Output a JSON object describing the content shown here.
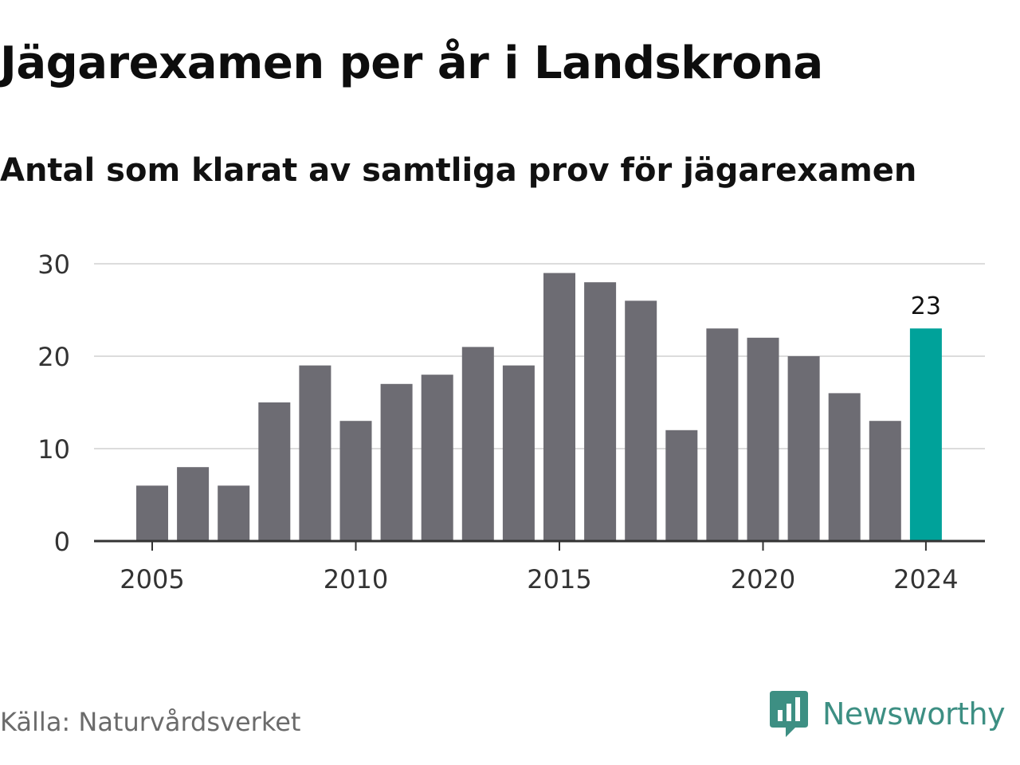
{
  "title": "Jägarexamen per år i Landskrona",
  "subtitle": "Antal som klarat av samtliga prov för jägarexamen",
  "source": "Källa: Naturvårdsverket",
  "brand": {
    "name": "Newsworthy",
    "icon": "newsworthy-logo-icon"
  },
  "colors": {
    "bar": "#6d6c73",
    "highlight": "#00a29a",
    "grid": "#dcdcdc",
    "axis": "#333333",
    "tick_label": "#333333",
    "brand": "#3d8f83"
  },
  "chart_data": {
    "type": "bar",
    "x": [
      2005,
      2006,
      2007,
      2008,
      2009,
      2010,
      2011,
      2012,
      2013,
      2014,
      2015,
      2016,
      2017,
      2018,
      2019,
      2020,
      2021,
      2022,
      2023,
      2024
    ],
    "values": [
      6,
      8,
      6,
      15,
      19,
      13,
      17,
      18,
      21,
      19,
      29,
      28,
      26,
      12,
      23,
      22,
      20,
      16,
      13,
      23
    ],
    "highlight": {
      "x": 2024,
      "label": "23"
    },
    "x_ticks": [
      "2005",
      "2010",
      "2015",
      "2020",
      "2024"
    ],
    "y_ticks": [
      "0",
      "10",
      "20",
      "30"
    ],
    "ylim": [
      0,
      30
    ],
    "grid": true,
    "xlabel": "",
    "ylabel": ""
  }
}
